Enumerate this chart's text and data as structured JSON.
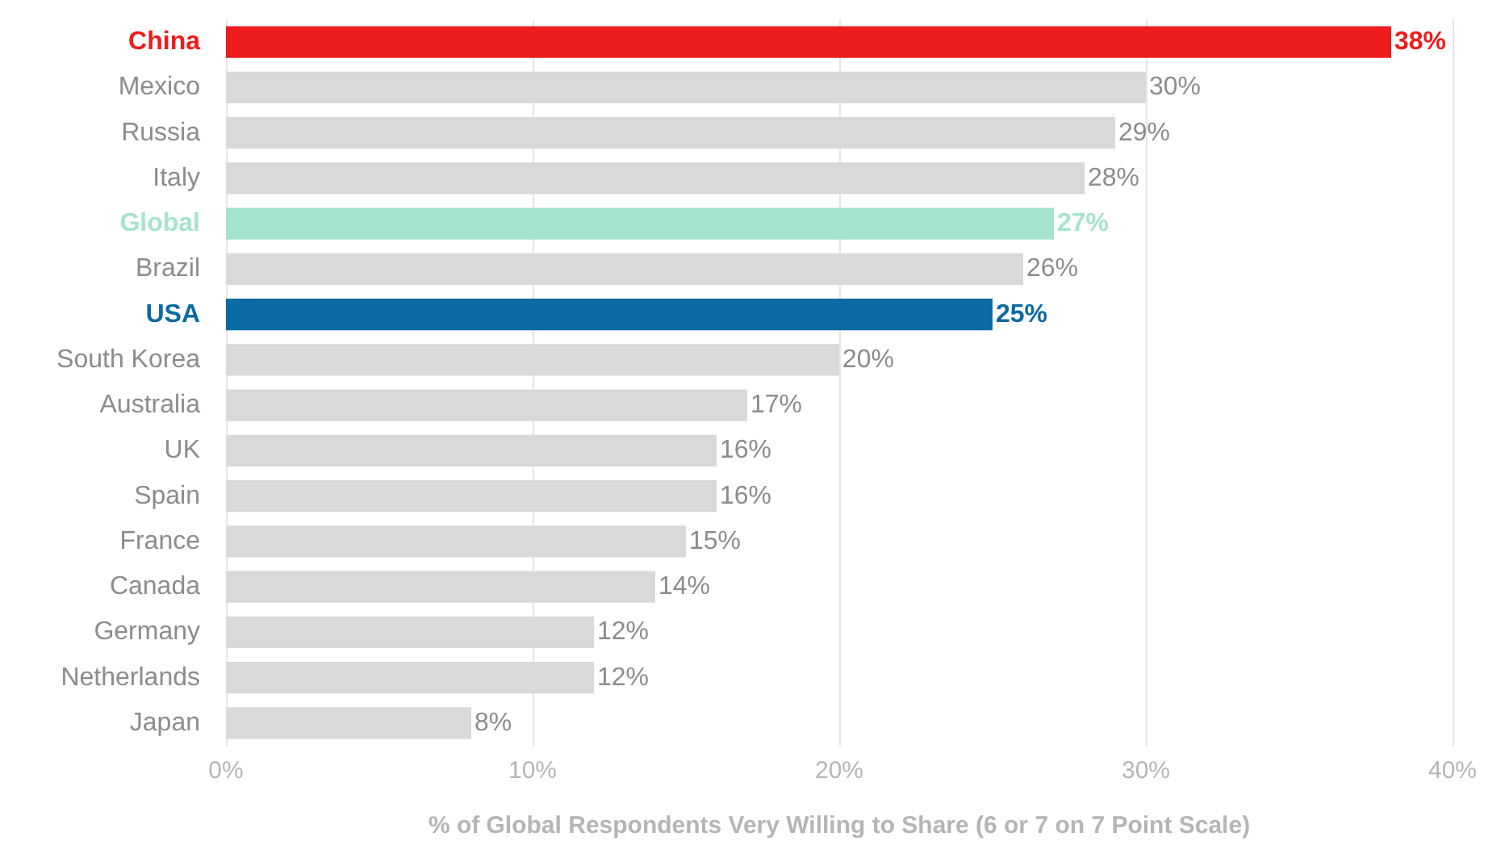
{
  "chart_data": {
    "type": "bar",
    "orientation": "horizontal",
    "xlabel": "% of Global Respondents Very Willing to Share (6 or 7 on 7 Point Scale)",
    "categories": [
      "China",
      "Mexico",
      "Russia",
      "Italy",
      "Global",
      "Brazil",
      "USA",
      "South Korea",
      "Australia",
      "UK",
      "Spain",
      "France",
      "Canada",
      "Germany",
      "Netherlands",
      "Japan"
    ],
    "values": [
      38,
      30,
      29,
      28,
      27,
      26,
      25,
      20,
      17,
      16,
      16,
      15,
      14,
      12,
      12,
      8
    ],
    "value_labels": [
      "38%",
      "30%",
      "29%",
      "28%",
      "27%",
      "26%",
      "25%",
      "20%",
      "17%",
      "16%",
      "16%",
      "15%",
      "14%",
      "12%",
      "12%",
      "8%"
    ],
    "colors": [
      "#ee1c1c",
      "#d9d9d9",
      "#d9d9d9",
      "#d9d9d9",
      "#a6e3cc",
      "#d9d9d9",
      "#0c6aa3",
      "#d9d9d9",
      "#d9d9d9",
      "#d9d9d9",
      "#d9d9d9",
      "#d9d9d9",
      "#d9d9d9",
      "#d9d9d9",
      "#d9d9d9",
      "#d9d9d9"
    ],
    "xlim": [
      0,
      40
    ],
    "xticks": [
      {
        "value": 0,
        "label": "0%"
      },
      {
        "value": 10,
        "label": "10%"
      },
      {
        "value": 20,
        "label": "20%"
      },
      {
        "value": 30,
        "label": "30%"
      },
      {
        "value": 40,
        "label": "40%"
      }
    ],
    "grid": "x"
  }
}
